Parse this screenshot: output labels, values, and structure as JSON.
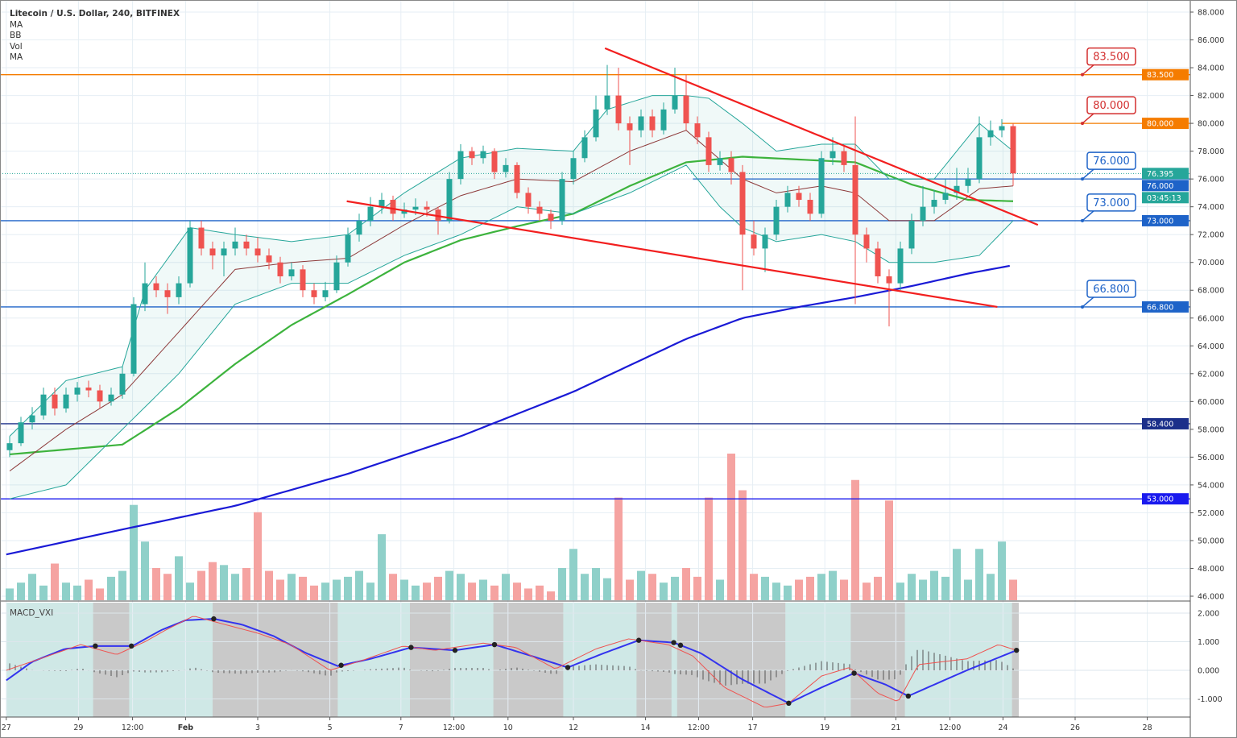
{
  "header": {
    "title": "Litecoin / U.S. Dollar, 240, BITFINEX",
    "indicators": [
      "MA",
      "BB",
      "Vol",
      "MA"
    ]
  },
  "chart_data": [
    {
      "type": "candlestick",
      "title": "Litecoin / U.S. Dollar, 240, BITFINEX",
      "ylim": [
        46,
        88
      ],
      "grid": true,
      "y_ticks": [
        "88.000",
        "86.000",
        "84.000",
        "82.000",
        "80.000",
        "78.000",
        "76.000",
        "74.000",
        "72.000",
        "70.000",
        "68.000",
        "66.000",
        "64.000",
        "62.000",
        "60.000",
        "58.000",
        "56.000",
        "54.000",
        "52.000",
        "50.000",
        "48.000",
        "46.000"
      ],
      "x_ticks": [
        {
          "label": "27",
          "idx": -0.3
        },
        {
          "label": "29",
          "idx": 6.1
        },
        {
          "label": "12:00",
          "idx": 10.9
        },
        {
          "label": "Feb",
          "idx": 15.6,
          "bold": true
        },
        {
          "label": "3",
          "idx": 22
        },
        {
          "label": "5",
          "idx": 28.4
        },
        {
          "label": "7",
          "idx": 34.7
        },
        {
          "label": "12:00",
          "idx": 39.4
        },
        {
          "label": "10",
          "idx": 44.2
        },
        {
          "label": "12",
          "idx": 50
        },
        {
          "label": "14",
          "idx": 56.4
        },
        {
          "label": "12:00",
          "idx": 61.1
        },
        {
          "label": "17",
          "idx": 65.9
        },
        {
          "label": "19",
          "idx": 72.3
        },
        {
          "label": "21",
          "idx": 78.6
        },
        {
          "label": "12:00",
          "idx": 83.4
        },
        {
          "label": "24",
          "idx": 88.1
        },
        {
          "label": "26",
          "idx": 94.5
        },
        {
          "label": "28",
          "idx": 100.9
        }
      ],
      "ohlc": [
        [
          56.5,
          57.5,
          56,
          57
        ],
        [
          57,
          58.9,
          56.8,
          58.5
        ],
        [
          58.5,
          59.6,
          58,
          59
        ],
        [
          59,
          61,
          58.7,
          60.5
        ],
        [
          60.5,
          61,
          59,
          59.5
        ],
        [
          59.5,
          61,
          59.2,
          60.5
        ],
        [
          60.5,
          61.4,
          60,
          61
        ],
        [
          61,
          61.5,
          60.3,
          60.8
        ],
        [
          60.8,
          61.2,
          59.5,
          60
        ],
        [
          60,
          61,
          59.7,
          60.5
        ],
        [
          60.5,
          62.5,
          60.2,
          62
        ],
        [
          62,
          67.5,
          61.8,
          67
        ],
        [
          67,
          70,
          66.5,
          68.5
        ],
        [
          68.5,
          69,
          67.5,
          68
        ],
        [
          68,
          68.5,
          66.3,
          67.5
        ],
        [
          67.5,
          69,
          67,
          68.5
        ],
        [
          68.5,
          73,
          68.2,
          72.5
        ],
        [
          72.5,
          73,
          70.5,
          71
        ],
        [
          71,
          71.5,
          69.5,
          70.5
        ],
        [
          70.5,
          71.5,
          69,
          71
        ],
        [
          71,
          72.5,
          70.5,
          71.5
        ],
        [
          71.5,
          72,
          70.5,
          71
        ],
        [
          71,
          71.8,
          70,
          70.5
        ],
        [
          70.5,
          71,
          69.5,
          70
        ],
        [
          70,
          70.4,
          68.5,
          69
        ],
        [
          69,
          70,
          68.7,
          69.5
        ],
        [
          69.5,
          69.8,
          67.5,
          68
        ],
        [
          68,
          68.5,
          67,
          67.5
        ],
        [
          67.5,
          68.6,
          67.2,
          68
        ],
        [
          68,
          70.5,
          67.8,
          70
        ],
        [
          70,
          72.5,
          69.7,
          72
        ],
        [
          72,
          73.5,
          71.5,
          73
        ],
        [
          73,
          74.7,
          72.6,
          74
        ],
        [
          74,
          75,
          73.5,
          74.5
        ],
        [
          74.5,
          74.8,
          73,
          73.5
        ],
        [
          73.5,
          74.3,
          73.2,
          73.8
        ],
        [
          73.8,
          74.6,
          73.4,
          74
        ],
        [
          74,
          74.4,
          73.3,
          73.8
        ],
        [
          73.8,
          74,
          72,
          73
        ],
        [
          73,
          76.5,
          72.8,
          76
        ],
        [
          76,
          78.5,
          75.6,
          78
        ],
        [
          78,
          78.3,
          77,
          77.5
        ],
        [
          77.5,
          78.4,
          77.1,
          78
        ],
        [
          78,
          78.2,
          76,
          76.5
        ],
        [
          76.5,
          77.5,
          76.1,
          77
        ],
        [
          77,
          77.2,
          74.6,
          75
        ],
        [
          75,
          75.4,
          73.5,
          74
        ],
        [
          74,
          74.4,
          73,
          73.5
        ],
        [
          73.5,
          73.8,
          72.4,
          73
        ],
        [
          73,
          76.5,
          72.7,
          76
        ],
        [
          76,
          78,
          75.6,
          77.5
        ],
        [
          77.5,
          79.5,
          77.2,
          79
        ],
        [
          79,
          82,
          78.7,
          81
        ],
        [
          81,
          84.2,
          80.6,
          82
        ],
        [
          82,
          84,
          79.5,
          80
        ],
        [
          80,
          80.5,
          77,
          79.5
        ],
        [
          79.5,
          81,
          79,
          80.5
        ],
        [
          80.5,
          81,
          79,
          79.5
        ],
        [
          79.5,
          81.5,
          79.2,
          81
        ],
        [
          81,
          84,
          80.7,
          82
        ],
        [
          82,
          83.5,
          79.5,
          80
        ],
        [
          80,
          80.5,
          78.5,
          79
        ],
        [
          79,
          79.4,
          76.5,
          77
        ],
        [
          77,
          78,
          76.6,
          77.5
        ],
        [
          77.5,
          78,
          75.6,
          76.5
        ],
        [
          76.5,
          77,
          68,
          72
        ],
        [
          72,
          73,
          70.5,
          71
        ],
        [
          71,
          72.5,
          69.3,
          72
        ],
        [
          72,
          74.5,
          71.6,
          74
        ],
        [
          74,
          75.5,
          73.6,
          75
        ],
        [
          75,
          75.5,
          74,
          74.5
        ],
        [
          74.5,
          75,
          73,
          73.5
        ],
        [
          73.5,
          78,
          73.2,
          77.5
        ],
        [
          77.5,
          79,
          77,
          78
        ],
        [
          78,
          78.4,
          76.5,
          77
        ],
        [
          77,
          80.5,
          67,
          72
        ],
        [
          72,
          72.5,
          70,
          71
        ],
        [
          71,
          71.5,
          68.5,
          69
        ],
        [
          69,
          69.5,
          65.4,
          68.5
        ],
        [
          68.5,
          71.5,
          68,
          71
        ],
        [
          71,
          73.5,
          70.6,
          73
        ],
        [
          73,
          75.5,
          72.6,
          74
        ],
        [
          74,
          75.2,
          73.5,
          74.5
        ],
        [
          74.5,
          76,
          74.2,
          75
        ],
        [
          75,
          76.8,
          74.5,
          75.5
        ],
        [
          75.5,
          76.8,
          75,
          76
        ],
        [
          76,
          80.5,
          75.7,
          79
        ],
        [
          79,
          80.2,
          78.4,
          79.5
        ],
        [
          79.5,
          80.3,
          79,
          79.8
        ],
        [
          79.8,
          80,
          75.5,
          76.4
        ]
      ],
      "volume_relative": [
        8,
        12,
        18,
        10,
        25,
        12,
        10,
        14,
        8,
        16,
        20,
        65,
        40,
        22,
        18,
        30,
        12,
        20,
        26,
        24,
        18,
        22,
        60,
        20,
        14,
        18,
        16,
        10,
        12,
        14,
        16,
        20,
        12,
        45,
        18,
        14,
        10,
        12,
        16,
        20,
        18,
        12,
        14,
        10,
        18,
        12,
        8,
        10,
        6,
        22,
        35,
        18,
        22,
        15,
        70,
        14,
        20,
        18,
        12,
        16,
        22,
        16,
        70,
        14,
        100,
        75,
        18,
        16,
        12,
        10,
        14,
        16,
        18,
        20,
        14,
        82,
        12,
        16,
        68,
        12,
        18,
        14,
        20,
        16,
        35,
        14,
        35,
        18,
        40,
        14
      ],
      "series": [
        {
          "kind": "MA",
          "color": "#3db33d",
          "t": [
            0,
            10,
            15,
            20,
            25,
            30,
            35,
            40,
            45,
            50,
            55,
            60,
            65,
            70,
            75,
            80,
            85,
            89
          ],
          "v": [
            56.2,
            56.9,
            59.5,
            62.7,
            65.5,
            67.7,
            70,
            71.6,
            72.6,
            73.5,
            75.5,
            77.2,
            77.6,
            77.4,
            77.2,
            75.6,
            74.5,
            74.4
          ]
        },
        {
          "kind": "MA",
          "color": "#1a1ad6",
          "t": [
            -0.3,
            10,
            20,
            30,
            40,
            50,
            60,
            65,
            70,
            75,
            80,
            85,
            89
          ],
          "v": [
            49,
            50.8,
            52.5,
            54.8,
            57.5,
            60.7,
            64.5,
            66,
            66.8,
            67.5,
            68.3,
            69.2,
            69.8
          ]
        },
        {
          "kind": "BB upper",
          "color": "#26a69a",
          "t": [
            0,
            5,
            10,
            12,
            16,
            20,
            25,
            30,
            35,
            40,
            45,
            50,
            53,
            57,
            60,
            62,
            65,
            68,
            72,
            75,
            78,
            82,
            86,
            89
          ],
          "v": [
            57.5,
            61.5,
            62.5,
            68,
            72.5,
            72,
            71.5,
            72,
            75,
            77.5,
            78.2,
            78,
            81,
            82,
            82,
            81.8,
            80,
            78,
            78.5,
            78.5,
            76,
            76,
            80,
            78
          ]
        },
        {
          "kind": "BB lower",
          "color": "#26a69a",
          "t": [
            0,
            5,
            10,
            15,
            20,
            25,
            30,
            35,
            40,
            45,
            50,
            55,
            60,
            63,
            65,
            68,
            72,
            75,
            78,
            82,
            86,
            89
          ],
          "v": [
            53,
            54,
            58,
            62,
            67,
            68.5,
            68.5,
            70.5,
            72,
            74,
            73.5,
            75,
            77,
            74,
            72.5,
            71.5,
            72,
            71.5,
            70,
            70,
            70.5,
            73
          ]
        },
        {
          "kind": "BB basis",
          "color": "#8d3a3a",
          "t": [
            0,
            5,
            10,
            15,
            20,
            25,
            30,
            35,
            40,
            45,
            50,
            55,
            60,
            65,
            68,
            72,
            75,
            78,
            82,
            86,
            89
          ],
          "v": [
            55,
            58,
            60.5,
            65,
            69.5,
            70,
            70.3,
            72.7,
            74.8,
            76,
            75.8,
            78,
            79.5,
            76,
            75,
            75.5,
            75,
            73,
            73,
            75.3,
            75.5
          ]
        }
      ],
      "trendlines": [
        {
          "color": "#f21f1f",
          "from": [
            52.8,
            85.4
          ],
          "to": [
            91.2,
            72.7
          ]
        },
        {
          "color": "#f21f1f",
          "from": [
            29.9,
            74.4
          ],
          "to": [
            87.6,
            66.8
          ]
        }
      ],
      "horizontal_levels": [
        {
          "price": 83.5,
          "label": "83.500",
          "color": "#f57c00",
          "callout": "83.500",
          "callout_color": "#d32f2f",
          "from_idx": -1
        },
        {
          "price": 80.0,
          "label": "80.000",
          "color": "#f57c00",
          "callout": "80.000",
          "callout_color": "#d32f2f",
          "from_idx": 88
        },
        {
          "price": 76.0,
          "label": "76.000",
          "color": "#1e63c8",
          "callout": "76.000",
          "callout_color": "#1e63c8",
          "from_idx": 60.6
        },
        {
          "price": 73.0,
          "label": "73.000",
          "color": "#1e63c8",
          "callout": "73.000",
          "callout_color": "#1e63c8",
          "from_idx": -1
        },
        {
          "price": 66.8,
          "label": "66.800",
          "color": "#1e63c8",
          "callout": "66.800",
          "callout_color": "#1e63c8",
          "from_idx": -1
        },
        {
          "price": 58.4,
          "label": "58.400",
          "color": "#1b2f8a",
          "from_idx": -1
        },
        {
          "price": 53.0,
          "label": "53.000",
          "color": "#1a1aee",
          "from_idx": -1
        }
      ],
      "last_price": {
        "value": 76.395,
        "label": "76.395",
        "countdown": "03:45:13",
        "color": "#26a69a"
      }
    },
    {
      "type": "line",
      "title": "MACD_VXI",
      "ylim": [
        -1.6,
        2.2
      ],
      "y_ticks": [
        "2.000",
        "1.000",
        "0.000",
        "-1.000"
      ],
      "series": [
        {
          "color": "#3333ee",
          "t": [
            -0.3,
            2,
            4.9,
            7.6,
            10.9,
            13.4,
            15.6,
            18.1,
            20.6,
            23.4,
            26.3,
            29.1,
            32,
            35.6,
            39.5,
            43,
            46.3,
            49.5,
            52.7,
            55.8,
            58.9,
            61.3,
            64.9,
            69.1,
            72,
            74.9,
            77.7,
            79.7,
            82,
            84.9,
            89.3
          ],
          "v": [
            -0.35,
            0.3,
            0.75,
            0.85,
            0.85,
            1.4,
            1.75,
            1.8,
            1.6,
            1.2,
            0.6,
            0.15,
            0.4,
            0.8,
            0.7,
            0.9,
            0.5,
            0.1,
            0.6,
            1.05,
            0.97,
            0.6,
            -0.3,
            -1.15,
            -0.6,
            -0.1,
            -0.5,
            -0.9,
            -0.5,
            0,
            0.7
          ]
        },
        {
          "color": "#ef5350",
          "t": [
            -0.3,
            3.4,
            6.3,
            9.5,
            12,
            13.8,
            16.3,
            19.1,
            22,
            24.9,
            28.4,
            31.3,
            34.9,
            37.7,
            42,
            44.9,
            48.4,
            52,
            54.9,
            58.4,
            60.6,
            63.4,
            67,
            69.1,
            72,
            74.5,
            77,
            78.8,
            80.6,
            84.9,
            87.7,
            89.3
          ],
          "v": [
            0,
            0.5,
            0.9,
            0.55,
            1.0,
            1.4,
            1.9,
            1.6,
            1.3,
            0.9,
            0,
            0.35,
            0.85,
            0.7,
            0.95,
            0.8,
            0.05,
            0.75,
            1.1,
            0.9,
            0.5,
            -0.6,
            -1.3,
            -1.15,
            -0.2,
            0.1,
            -0.8,
            -1.1,
            0.2,
            0.4,
            0.9,
            0.7
          ]
        }
      ],
      "cross_points": [
        7.6,
        10.8,
        18.1,
        29.4,
        35.6,
        39.5,
        43,
        49.5,
        55.8,
        58.9,
        59.5,
        69.1,
        74.9,
        79.7,
        89.3
      ],
      "bearish_zones": [
        [
          7.4,
          10.6
        ],
        [
          18,
          29.1
        ],
        [
          35.5,
          39.1
        ],
        [
          42.9,
          49.1
        ],
        [
          55.6,
          58.7
        ],
        [
          59.2,
          68.8
        ],
        [
          74.6,
          79.4
        ],
        [
          88.9,
          89.5
        ]
      ],
      "bullish_zone_color": "#cfe8e6",
      "bearish_zone_color": "#c9c9c9"
    }
  ],
  "colors": {
    "up": "#26a69a",
    "down": "#ef5350",
    "vol_up": "#8fd0c9",
    "vol_down": "#f5a3a1"
  }
}
